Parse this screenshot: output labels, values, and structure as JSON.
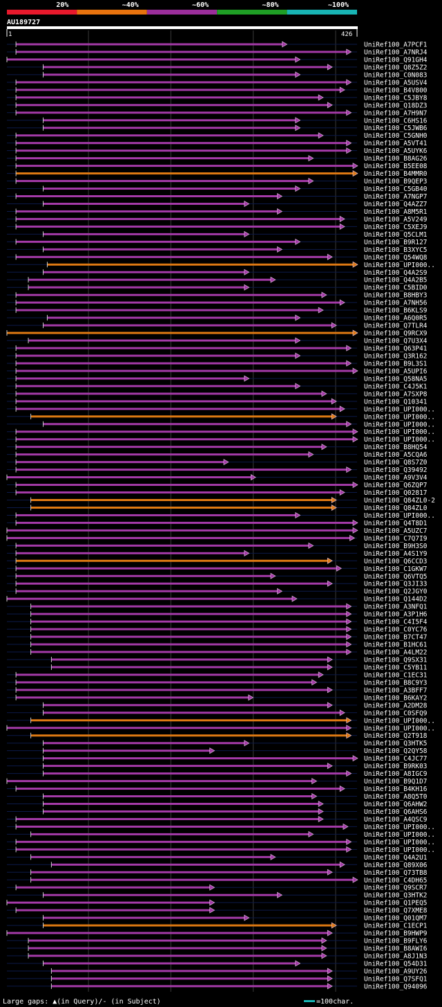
{
  "query": {
    "id": "AU189727",
    "start": "1",
    "end": "426",
    "length": 426
  },
  "identity_legend": [
    {
      "label": "20%",
      "color": "#e8192c"
    },
    {
      "label": "~40%",
      "color": "#e8730e"
    },
    {
      "label": "~60%",
      "color": "#9b2e9b"
    },
    {
      "label": "~80%",
      "color": "#1f9e25"
    },
    {
      "label": "~100%",
      "color": "#18b4b4"
    }
  ],
  "footer": {
    "gap_legend": "Large gaps: ▲(in Query)/- (in Subject)",
    "scale_legend": "=100char."
  },
  "chart_data": {
    "type": "alignment-overview",
    "title": "AU189727",
    "x_range": [
      1,
      426
    ],
    "hits": [
      {
        "label": "UniRef100_A7PCF1",
        "start": 12,
        "end": 336,
        "color": "purple"
      },
      {
        "label": "UniRef100_A7NRJ4",
        "start": 12,
        "end": 414,
        "color": "purple"
      },
      {
        "label": "UniRef100_Q91GH4",
        "start": 1,
        "end": 352,
        "color": "purple"
      },
      {
        "label": "UniRef100_Q8Z5Z2",
        "start": 45,
        "end": 391,
        "color": "purple"
      },
      {
        "label": "UniRef100_C0N083",
        "start": 45,
        "end": 352,
        "color": "purple"
      },
      {
        "label": "UniRef100_A5USV4",
        "start": 12,
        "end": 414,
        "color": "purple"
      },
      {
        "label": "UniRef100_B4V800",
        "start": 12,
        "end": 406,
        "color": "purple"
      },
      {
        "label": "UniRef100_C5JBY8",
        "start": 12,
        "end": 380,
        "color": "purple"
      },
      {
        "label": "UniRef100_Q18DZ3",
        "start": 12,
        "end": 391,
        "color": "purple"
      },
      {
        "label": "UniRef100_A7H9N7",
        "start": 12,
        "end": 414,
        "color": "purple"
      },
      {
        "label": "UniRef100_C6HS16",
        "start": 45,
        "end": 352,
        "color": "purple"
      },
      {
        "label": "UniRef100_C5JWB6",
        "start": 45,
        "end": 352,
        "color": "purple"
      },
      {
        "label": "UniRef100_C5GNH0",
        "start": 12,
        "end": 380,
        "color": "purple"
      },
      {
        "label": "UniRef100_A5VT41",
        "start": 12,
        "end": 414,
        "color": "purple"
      },
      {
        "label": "UniRef100_A5UYK6",
        "start": 12,
        "end": 414,
        "color": "purple"
      },
      {
        "label": "UniRef100_B8AG26",
        "start": 12,
        "end": 368,
        "color": "purple"
      },
      {
        "label": "UniRef100_B5EE08",
        "start": 12,
        "end": 426,
        "color": "purple"
      },
      {
        "label": "UniRef100_B4MMR0",
        "start": 12,
        "end": 442,
        "color": "orange"
      },
      {
        "label": "UniRef100_B9QEP3",
        "start": 12,
        "end": 368,
        "color": "purple"
      },
      {
        "label": "UniRef100_C5GB40",
        "start": 45,
        "end": 352,
        "color": "purple"
      },
      {
        "label": "UniRef100_A7NGP7",
        "start": 12,
        "end": 330,
        "color": "purple"
      },
      {
        "label": "UniRef100_Q4AZZ7",
        "start": 45,
        "end": 290,
        "color": "purple"
      },
      {
        "label": "UniRef100_A8M5R1",
        "start": 12,
        "end": 330,
        "color": "purple"
      },
      {
        "label": "UniRef100_A5V249",
        "start": 12,
        "end": 406,
        "color": "purple"
      },
      {
        "label": "UniRef100_C5XEJ9",
        "start": 12,
        "end": 406,
        "color": "purple"
      },
      {
        "label": "UniRef100_Q5CLM1",
        "start": 45,
        "end": 290,
        "color": "purple"
      },
      {
        "label": "UniRef100_B9R127",
        "start": 12,
        "end": 352,
        "color": "purple"
      },
      {
        "label": "UniRef100_B3XYC5",
        "start": 45,
        "end": 330,
        "color": "purple"
      },
      {
        "label": "UniRef100_Q54WQ8",
        "start": 12,
        "end": 391,
        "color": "purple"
      },
      {
        "label": "UniRef100_UPI000..",
        "start": 50,
        "end": 442,
        "color": "orange"
      },
      {
        "label": "UniRef100_Q4A2S9",
        "start": 45,
        "end": 290,
        "color": "purple"
      },
      {
        "label": "UniRef100_Q4A2B5",
        "start": 27,
        "end": 322,
        "color": "purple"
      },
      {
        "label": "UniRef100_C5BID0",
        "start": 27,
        "end": 290,
        "color": "purple"
      },
      {
        "label": "UniRef100_B8HBY3",
        "start": 12,
        "end": 384,
        "color": "purple"
      },
      {
        "label": "UniRef100_A7NH56",
        "start": 12,
        "end": 406,
        "color": "purple"
      },
      {
        "label": "UniRef100_B6KLS9",
        "start": 12,
        "end": 380,
        "color": "purple"
      },
      {
        "label": "UniRef100_A6Q0R5",
        "start": 50,
        "end": 352,
        "color": "purple"
      },
      {
        "label": "UniRef100_Q7TLR4",
        "start": 45,
        "end": 396,
        "color": "purple"
      },
      {
        "label": "UniRef100_Q9RCX9",
        "start": 1,
        "end": 430,
        "color": "orange"
      },
      {
        "label": "UniRef100_Q7U3X4",
        "start": 27,
        "end": 352,
        "color": "purple"
      },
      {
        "label": "UniRef100_Q63P41",
        "start": 12,
        "end": 414,
        "color": "purple"
      },
      {
        "label": "UniRef100_Q3R162",
        "start": 12,
        "end": 352,
        "color": "purple"
      },
      {
        "label": "UniRef100_B9L3S1",
        "start": 12,
        "end": 414,
        "color": "purple"
      },
      {
        "label": "UniRef100_A5UPI6",
        "start": 12,
        "end": 426,
        "color": "purple"
      },
      {
        "label": "UniRef100_Q58NA5",
        "start": 12,
        "end": 290,
        "color": "purple"
      },
      {
        "label": "UniRef100_C4J5K1",
        "start": 12,
        "end": 352,
        "color": "purple"
      },
      {
        "label": "UniRef100_A7SXP8",
        "start": 12,
        "end": 384,
        "color": "purple"
      },
      {
        "label": "UniRef100_Q10341",
        "start": 12,
        "end": 396,
        "color": "purple"
      },
      {
        "label": "UniRef100_UPI000..",
        "start": 12,
        "end": 406,
        "color": "purple"
      },
      {
        "label": "UniRef100_UPI000..",
        "start": 30,
        "end": 396,
        "color": "orange"
      },
      {
        "label": "UniRef100_UPI000..",
        "start": 45,
        "end": 414,
        "color": "purple"
      },
      {
        "label": "UniRef100_UPI000..",
        "start": 12,
        "end": 426,
        "color": "purple"
      },
      {
        "label": "UniRef100_UPI000..",
        "start": 12,
        "end": 426,
        "color": "purple"
      },
      {
        "label": "UniRef100_B8HQ54",
        "start": 12,
        "end": 384,
        "color": "purple"
      },
      {
        "label": "UniRef100_A5CQA6",
        "start": 12,
        "end": 368,
        "color": "purple"
      },
      {
        "label": "UniRef100_Q8S7Z0",
        "start": 12,
        "end": 265,
        "color": "purple"
      },
      {
        "label": "UniRef100_Q39492",
        "start": 12,
        "end": 414,
        "color": "purple"
      },
      {
        "label": "UniRef100_A9V3V4",
        "start": 1,
        "end": 298,
        "color": "purple"
      },
      {
        "label": "UniRef100_Q6ZQP7",
        "start": 12,
        "end": 426,
        "color": "purple"
      },
      {
        "label": "UniRef100_Q02817",
        "start": 12,
        "end": 406,
        "color": "purple"
      },
      {
        "label": "UniRef100_Q84ZL0-2",
        "start": 30,
        "end": 396,
        "color": "orange"
      },
      {
        "label": "UniRef100_Q84ZL0",
        "start": 30,
        "end": 396,
        "color": "orange"
      },
      {
        "label": "UniRef100_UPI000..",
        "start": 12,
        "end": 352,
        "color": "purple"
      },
      {
        "label": "UniRef100_Q4T8D1",
        "start": 12,
        "end": 422,
        "color": "purple"
      },
      {
        "label": "UniRef100_A5UZC7",
        "start": 1,
        "end": 422,
        "color": "purple"
      },
      {
        "label": "UniRef100_C7Q7I9",
        "start": 1,
        "end": 418,
        "color": "purple"
      },
      {
        "label": "UniRef100_B9H3S0",
        "start": 12,
        "end": 368,
        "color": "purple"
      },
      {
        "label": "UniRef100_A4S1Y9",
        "start": 12,
        "end": 290,
        "color": "purple"
      },
      {
        "label": "UniRef100_Q6CCD3",
        "start": 12,
        "end": 391,
        "color": "orange"
      },
      {
        "label": "UniRef100_C1GKW7",
        "start": 12,
        "end": 402,
        "color": "purple"
      },
      {
        "label": "UniRef100_Q6VTQ5",
        "start": 12,
        "end": 322,
        "color": "purple"
      },
      {
        "label": "UniRef100_Q3JI33",
        "start": 12,
        "end": 391,
        "color": "purple"
      },
      {
        "label": "UniRef100_Q2JGY0",
        "start": 12,
        "end": 330,
        "color": "purple"
      },
      {
        "label": "UniRef100_Q144D2",
        "start": 1,
        "end": 348,
        "color": "purple"
      },
      {
        "label": "UniRef100_A3NFQ1",
        "start": 30,
        "end": 414,
        "color": "purple"
      },
      {
        "label": "UniRef100_A3P1H6",
        "start": 30,
        "end": 414,
        "color": "purple"
      },
      {
        "label": "UniRef100_C4I5F4",
        "start": 30,
        "end": 414,
        "color": "purple"
      },
      {
        "label": "UniRef100_C0YC76",
        "start": 30,
        "end": 414,
        "color": "purple"
      },
      {
        "label": "UniRef100_B7CT47",
        "start": 30,
        "end": 414,
        "color": "purple"
      },
      {
        "label": "UniRef100_B1HC61",
        "start": 30,
        "end": 414,
        "color": "purple"
      },
      {
        "label": "UniRef100_A4LM22",
        "start": 30,
        "end": 414,
        "color": "purple"
      },
      {
        "label": "UniRef100_Q9SX31",
        "start": 55,
        "end": 391,
        "color": "purple"
      },
      {
        "label": "UniRef100_C5YB11",
        "start": 55,
        "end": 391,
        "color": "purple"
      },
      {
        "label": "UniRef100_C1EC31",
        "start": 12,
        "end": 380,
        "color": "purple"
      },
      {
        "label": "UniRef100_B8C9Y3",
        "start": 12,
        "end": 372,
        "color": "purple"
      },
      {
        "label": "UniRef100_A3BFF7",
        "start": 12,
        "end": 391,
        "color": "purple"
      },
      {
        "label": "UniRef100_B6KAY2",
        "start": 12,
        "end": 295,
        "color": "purple"
      },
      {
        "label": "UniRef100_A2DM28",
        "start": 45,
        "end": 391,
        "color": "purple"
      },
      {
        "label": "UniRef100_C0SFQ9",
        "start": 45,
        "end": 406,
        "color": "purple"
      },
      {
        "label": "UniRef100_UPI000..",
        "start": 30,
        "end": 414,
        "color": "orange"
      },
      {
        "label": "UniRef100_UPI000..",
        "start": 1,
        "end": 414,
        "color": "purple"
      },
      {
        "label": "UniRef100_Q2T918",
        "start": 30,
        "end": 414,
        "color": "orange"
      },
      {
        "label": "UniRef100_Q3HTK5",
        "start": 45,
        "end": 290,
        "color": "purple"
      },
      {
        "label": "UniRef100_Q2QY58",
        "start": 45,
        "end": 248,
        "color": "purple"
      },
      {
        "label": "UniRef100_C4JC77",
        "start": 45,
        "end": 426,
        "color": "purple"
      },
      {
        "label": "UniRef100_B9RK03",
        "start": 45,
        "end": 391,
        "color": "purple"
      },
      {
        "label": "UniRef100_A8IGC9",
        "start": 45,
        "end": 414,
        "color": "purple"
      },
      {
        "label": "UniRef100_B9Q1D7",
        "start": 1,
        "end": 372,
        "color": "purple"
      },
      {
        "label": "UniRef100_B4KH16",
        "start": 12,
        "end": 406,
        "color": "purple"
      },
      {
        "label": "UniRef100_A8Q5T0",
        "start": 45,
        "end": 372,
        "color": "purple"
      },
      {
        "label": "UniRef100_Q6AHW2",
        "start": 45,
        "end": 380,
        "color": "purple"
      },
      {
        "label": "UniRef100_Q6AHS6",
        "start": 45,
        "end": 380,
        "color": "purple"
      },
      {
        "label": "UniRef100_A4QSC9",
        "start": 12,
        "end": 380,
        "color": "purple"
      },
      {
        "label": "UniRef100_UPI000..",
        "start": 12,
        "end": 410,
        "color": "purple"
      },
      {
        "label": "UniRef100_UPI000..",
        "start": 30,
        "end": 368,
        "color": "purple"
      },
      {
        "label": "UniRef100_UPI000..",
        "start": 12,
        "end": 414,
        "color": "purple"
      },
      {
        "label": "UniRef100_UPI000..",
        "start": 12,
        "end": 414,
        "color": "purple"
      },
      {
        "label": "UniRef100_Q4A2U1",
        "start": 30,
        "end": 322,
        "color": "purple"
      },
      {
        "label": "UniRef100_Q89X06",
        "start": 55,
        "end": 406,
        "color": "purple"
      },
      {
        "label": "UniRef100_Q73TB8",
        "start": 30,
        "end": 391,
        "color": "purple"
      },
      {
        "label": "UniRef100_C4DH65",
        "start": 30,
        "end": 426,
        "color": "purple"
      },
      {
        "label": "UniRef100_Q9SCR7",
        "start": 12,
        "end": 248,
        "color": "purple"
      },
      {
        "label": "UniRef100_Q3HTK2",
        "start": 45,
        "end": 330,
        "color": "purple"
      },
      {
        "label": "UniRef100_Q1PEQ5",
        "start": 1,
        "end": 248,
        "color": "purple"
      },
      {
        "label": "UniRef100_Q7XME8",
        "start": 12,
        "end": 248,
        "color": "purple"
      },
      {
        "label": "UniRef100_Q01QM7",
        "start": 45,
        "end": 290,
        "color": "purple"
      },
      {
        "label": "UniRef100_C1ECP1",
        "start": 45,
        "end": 396,
        "color": "orange"
      },
      {
        "label": "UniRef100_B9HWP9",
        "start": 1,
        "end": 391,
        "color": "purple"
      },
      {
        "label": "UniRef100_B9FLY6",
        "start": 27,
        "end": 384,
        "color": "purple"
      },
      {
        "label": "UniRef100_B8AWI6",
        "start": 27,
        "end": 384,
        "color": "purple"
      },
      {
        "label": "UniRef100_A8J1N3",
        "start": 27,
        "end": 384,
        "color": "purple"
      },
      {
        "label": "UniRef100_Q54D31",
        "start": 45,
        "end": 352,
        "color": "purple"
      },
      {
        "label": "UniRef100_A9UY26",
        "start": 55,
        "end": 391,
        "color": "purple"
      },
      {
        "label": "UniRef100_Q7SFQ1",
        "start": 55,
        "end": 391,
        "color": "purple"
      },
      {
        "label": "UniRef100_Q94096",
        "start": 55,
        "end": 391,
        "color": "purple"
      }
    ]
  }
}
